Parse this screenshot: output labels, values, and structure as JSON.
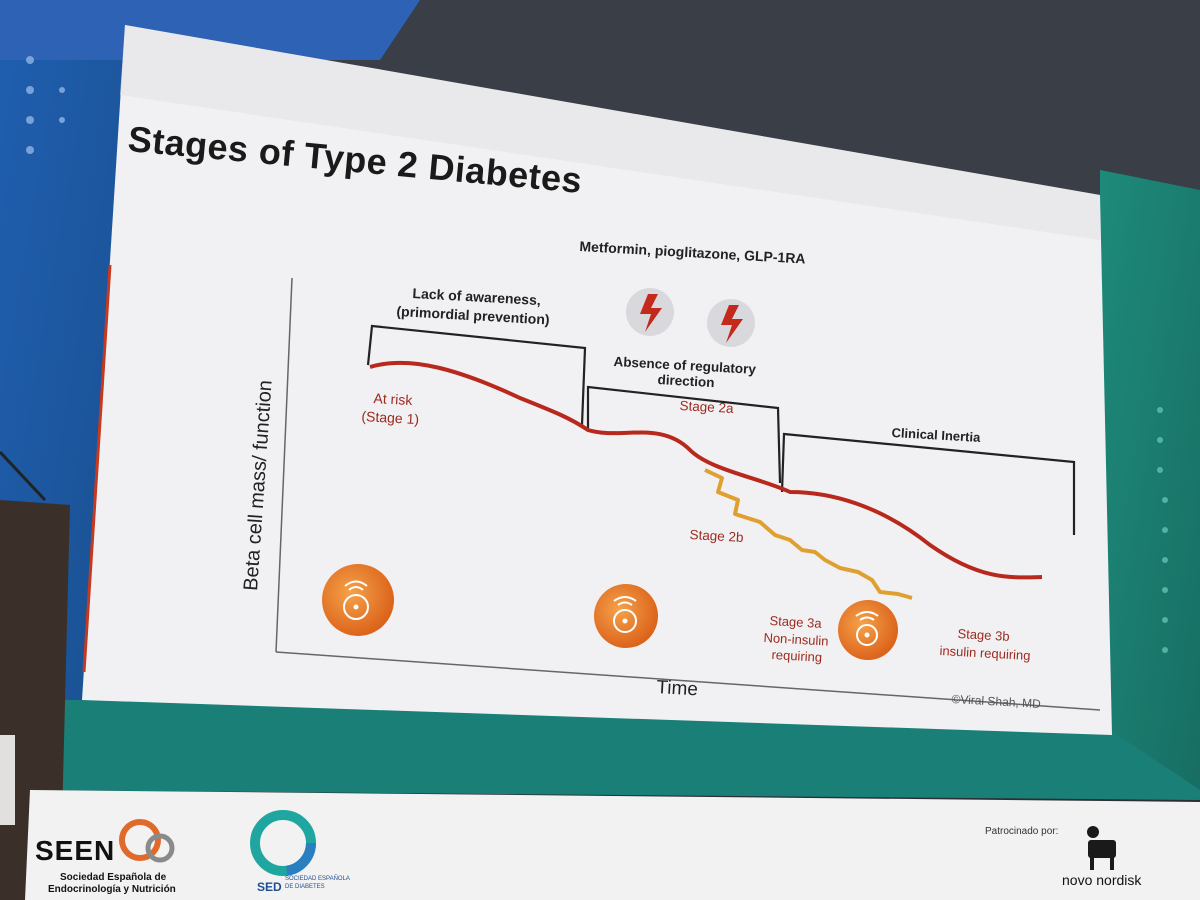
{
  "slide": {
    "title": "Stages of Type 2 Diabetes",
    "therapies": "Metformin, pioglitazone, GLP-1RA",
    "lack_awareness_line1": "Lack of awareness,",
    "lack_awareness_line2": "(primordial prevention)",
    "absence_line1": "Absence of regulatory",
    "absence_line2": "direction",
    "clinical_inertia": "Clinical Inertia",
    "at_risk_line1": "At risk",
    "at_risk_line2": "(Stage 1)",
    "stage_2a": "Stage 2a",
    "stage_2b": "Stage 2b",
    "stage_3a_line1": "Stage 3a",
    "stage_3a_line2": "Non-insulin",
    "stage_3a_line3": "requiring",
    "stage_3b_line1": "Stage 3b",
    "stage_3b_line2": "insulin requiring",
    "y_axis": "Beta cell mass/ function",
    "x_axis": "Time",
    "credit": "©Viral Shah, MD"
  },
  "banner": {
    "seen_logo": "SEEN",
    "seen_line1": "Sociedad Española de",
    "seen_line2": "Endocrinología y Nutrición",
    "sed_logo": "SED",
    "sed_line1": "SOCIEDAD ESPAÑOLA",
    "sed_line2": "DE DIABETES",
    "sponsor_label": "Patrocinado por:",
    "sponsor_name": "novo nordisk"
  },
  "colors": {
    "main_curve": "#b8281c",
    "stage2b_curve": "#e0a030",
    "icon_orange": "#ee7a1e",
    "background_teal": "#1e8a7a",
    "background_blue": "#1f5fb0"
  }
}
